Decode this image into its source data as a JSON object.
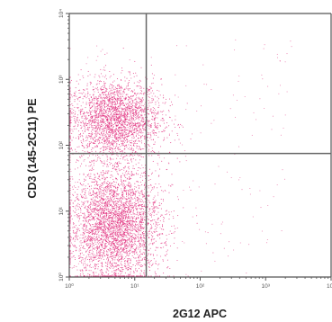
{
  "chart_data": {
    "type": "scatter",
    "title": "",
    "xlabel": "2G12 APC",
    "ylabel": "CD3 (145-2C11) PE",
    "x_scale": "log",
    "y_scale": "log",
    "xlim": [
      1,
      10000
    ],
    "ylim": [
      1,
      10000
    ],
    "x_ticks": [
      "10⁰",
      "10¹",
      "10²",
      "10³",
      "10⁴"
    ],
    "y_ticks": [
      "10⁰",
      "10¹",
      "10²",
      "10³",
      "10⁴"
    ],
    "quadrant_gates": {
      "x": 15,
      "y": 75
    },
    "point_color": "#e0287a",
    "axis_color": "#555555",
    "gate_color": "#666666",
    "populations": [
      {
        "center_x": 5,
        "center_y": 250,
        "spread_x_decades": 0.35,
        "spread_y_decades": 0.3,
        "count": 2600
      },
      {
        "center_x": 5,
        "center_y": 6,
        "spread_x_decades": 0.35,
        "spread_y_decades": 0.45,
        "count": 3800
      }
    ]
  }
}
